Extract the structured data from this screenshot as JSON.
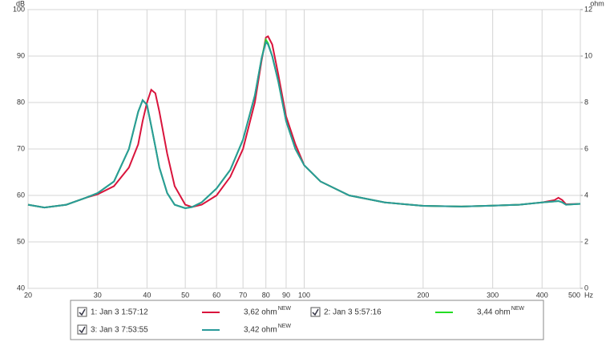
{
  "chart_data": {
    "type": "line",
    "y_label": "dB",
    "y2_label": "ohm",
    "x_unit": "Hz",
    "x_scale": "log",
    "x": [
      20,
      22,
      25,
      28,
      30,
      33,
      36,
      38,
      39,
      40,
      41,
      42,
      43,
      45,
      47,
      50,
      52,
      55,
      60,
      65,
      70,
      75,
      78,
      80,
      81,
      83,
      86,
      90,
      95,
      100,
      110,
      130,
      160,
      200,
      250,
      300,
      350,
      400,
      430,
      440,
      450,
      460,
      500
    ],
    "xlim": [
      20,
      500
    ],
    "xticks": [
      20,
      30,
      40,
      50,
      60,
      70,
      80,
      90,
      100,
      200,
      300,
      400,
      500
    ],
    "ylim": [
      40,
      100
    ],
    "yticks": [
      40,
      50,
      60,
      70,
      80,
      90,
      100
    ],
    "y2lim": [
      0,
      12
    ],
    "y2ticks": [
      0,
      2,
      4,
      6,
      8,
      10,
      12
    ],
    "grid": true,
    "series": [
      {
        "name": "1: Jan 3 1:57:12",
        "legend_value": "3,62 ohm",
        "badge": "NEW",
        "color": "#d9143c",
        "axis": "y2",
        "values": [
          3.6,
          3.48,
          3.6,
          3.9,
          4.05,
          4.4,
          5.2,
          6.2,
          7.2,
          8.0,
          8.55,
          8.4,
          7.6,
          5.8,
          4.4,
          3.6,
          3.5,
          3.6,
          4.0,
          4.8,
          6.0,
          8.0,
          9.8,
          10.8,
          10.85,
          10.5,
          9.2,
          7.4,
          6.2,
          5.3,
          4.6,
          4.0,
          3.7,
          3.55,
          3.52,
          3.56,
          3.6,
          3.7,
          3.8,
          3.9,
          3.8,
          3.62,
          3.64
        ]
      },
      {
        "name": "2: Jan 3 5:57:16",
        "legend_value": "3,44 ohm",
        "badge": "NEW",
        "color": "#22dd22",
        "axis": "y2",
        "values": [
          3.6,
          3.48,
          3.6,
          3.9,
          4.1,
          4.6,
          6.0,
          7.6,
          8.1,
          7.9,
          7.0,
          6.1,
          5.2,
          4.1,
          3.6,
          3.45,
          3.5,
          3.7,
          4.3,
          5.1,
          6.4,
          8.3,
          9.9,
          10.7,
          10.55,
          10.0,
          8.9,
          7.2,
          6.0,
          5.3,
          4.6,
          4.0,
          3.7,
          3.55,
          3.52,
          3.56,
          3.6,
          3.7,
          3.74,
          3.76,
          3.7,
          3.6,
          3.64
        ]
      },
      {
        "name": "3: Jan 3 7:53:55",
        "legend_value": "3,42 ohm",
        "badge": "NEW",
        "color": "#2a9a9a",
        "axis": "y2",
        "values": [
          3.6,
          3.48,
          3.6,
          3.9,
          4.1,
          4.6,
          6.0,
          7.6,
          8.1,
          7.9,
          7.0,
          6.1,
          5.2,
          4.1,
          3.6,
          3.45,
          3.5,
          3.7,
          4.3,
          5.1,
          6.4,
          8.3,
          9.9,
          10.6,
          10.5,
          10.0,
          8.9,
          7.2,
          6.0,
          5.3,
          4.6,
          4.0,
          3.7,
          3.55,
          3.52,
          3.56,
          3.6,
          3.7,
          3.74,
          3.76,
          3.7,
          3.6,
          3.64
        ]
      }
    ]
  }
}
